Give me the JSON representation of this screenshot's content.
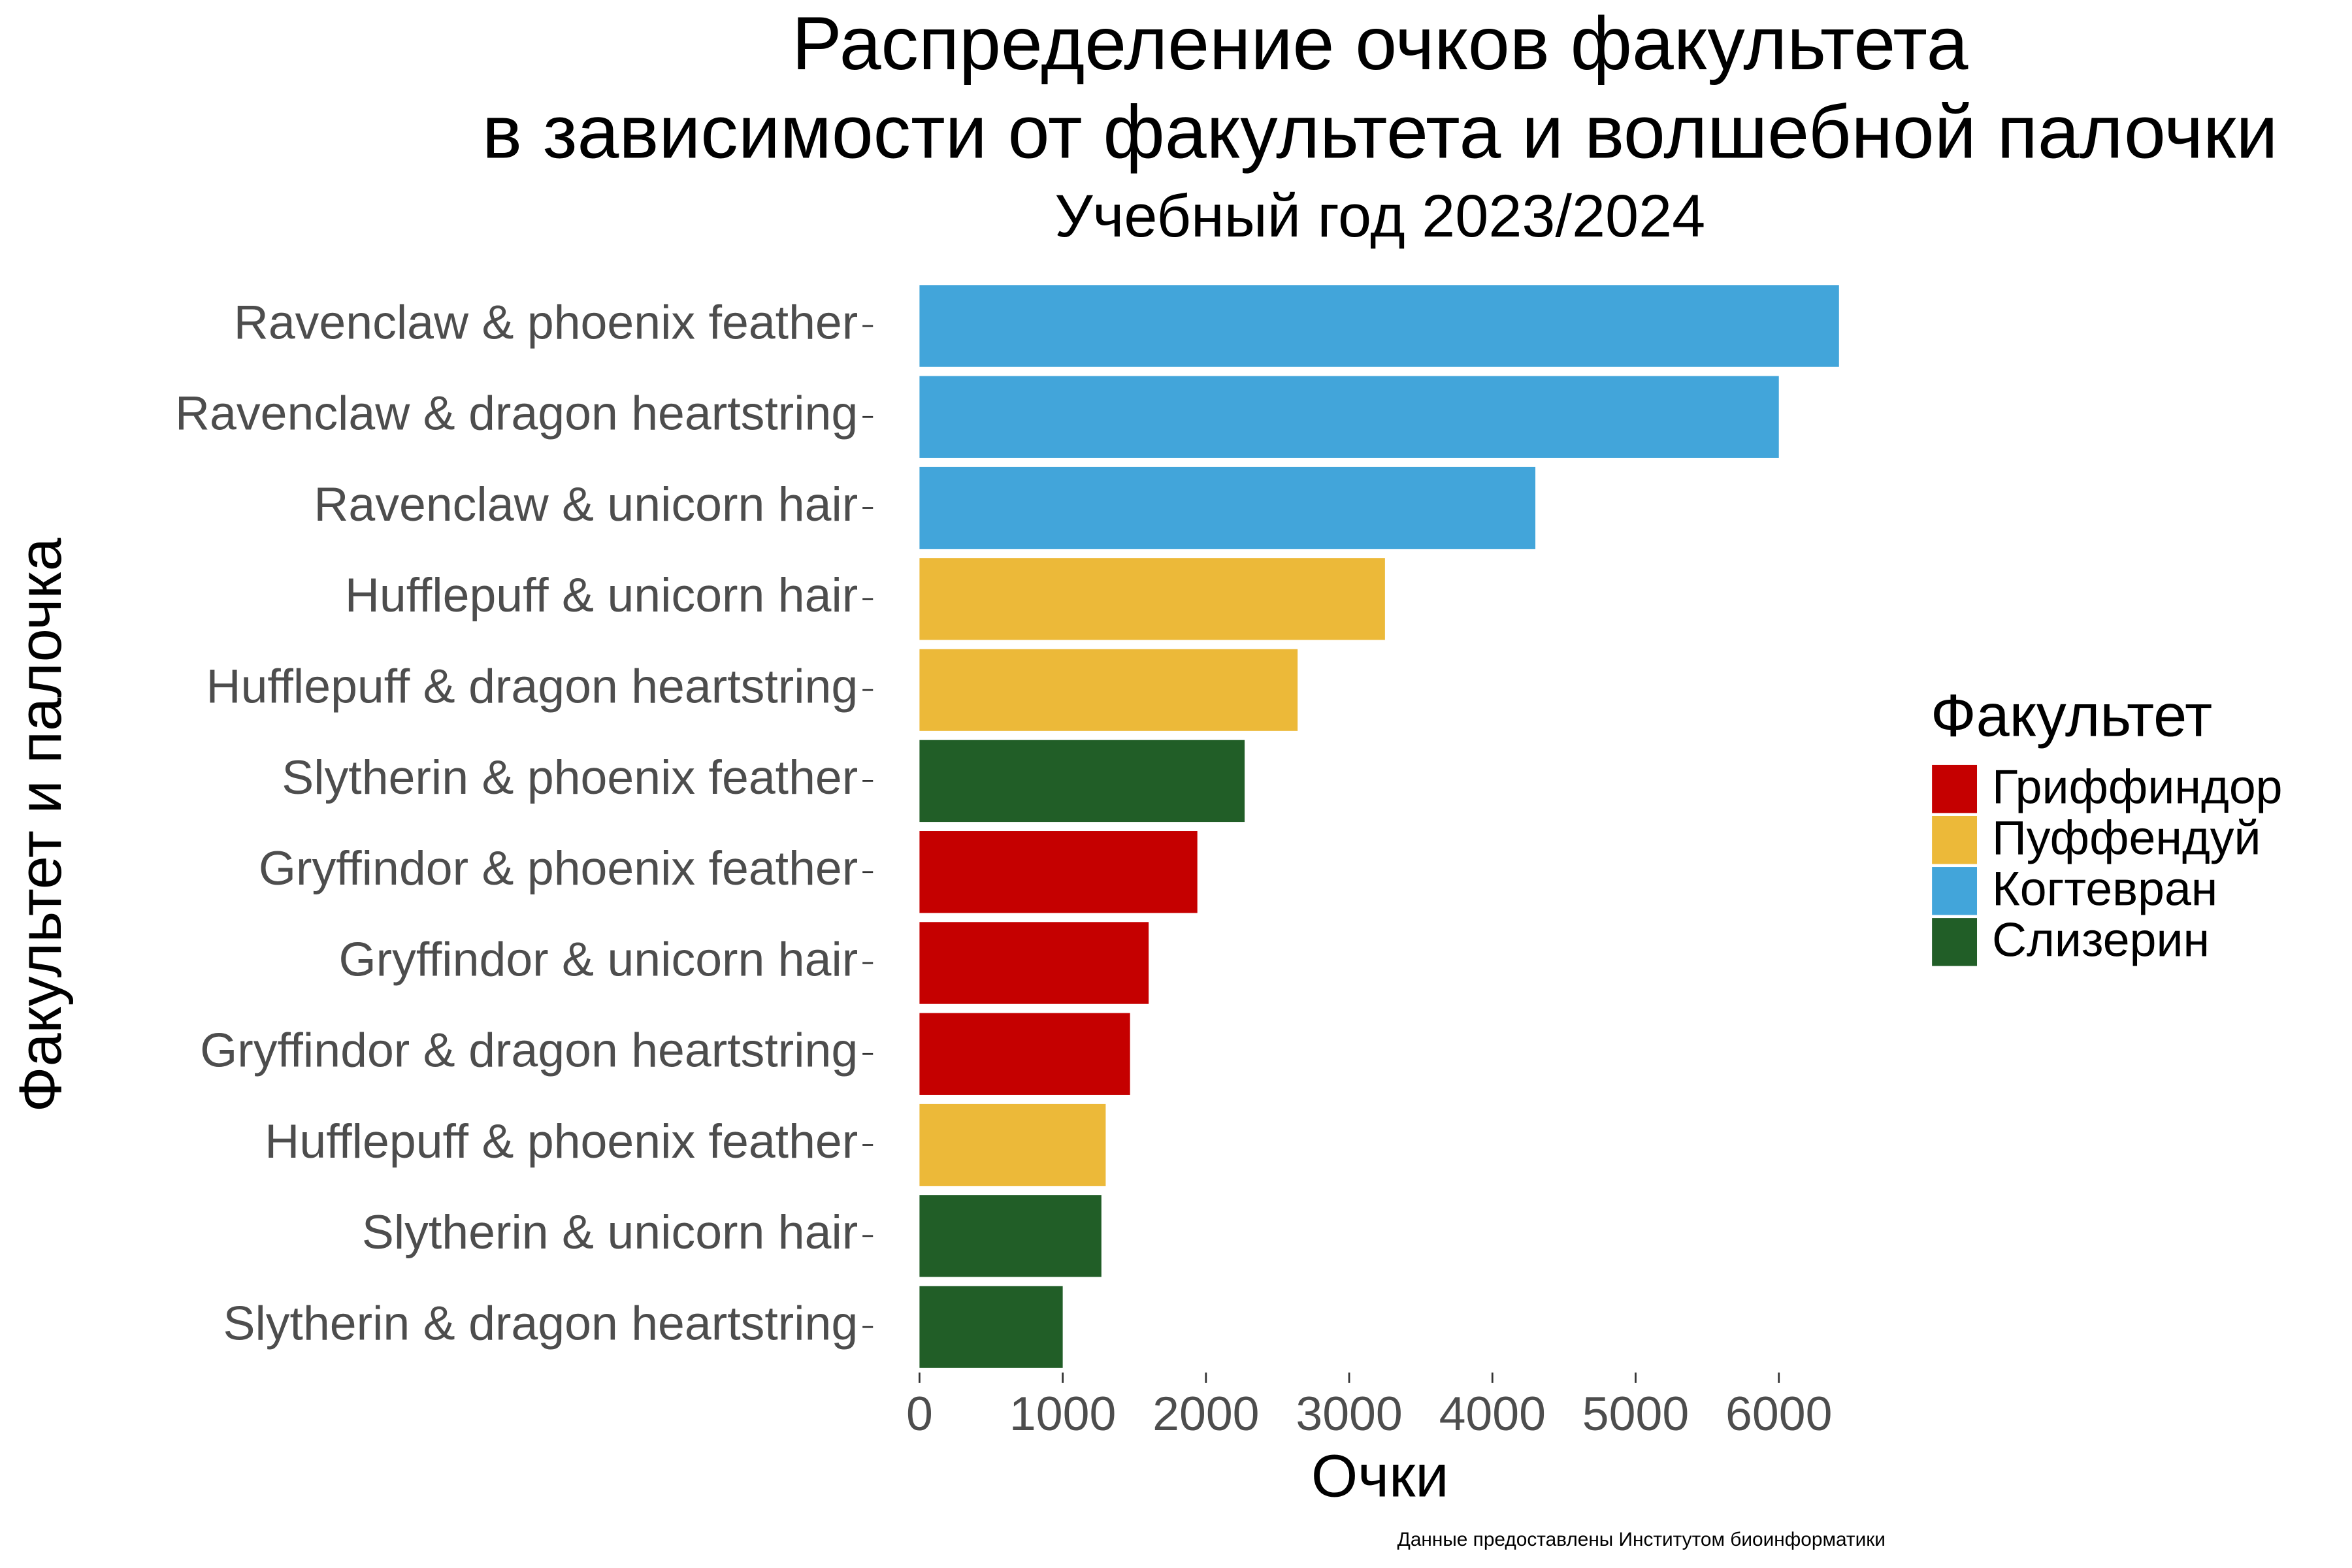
{
  "chart_data": {
    "type": "bar",
    "orientation": "horizontal",
    "title": [
      "Распределение очков факультета",
      "в зависимости от факультета и волшебной палочки"
    ],
    "subtitle": "Учебный год 2023/2024",
    "x_label": "Очки",
    "y_label": "Факультет и палочка",
    "caption": "Данные предоставлены Институтом биоинформатики",
    "categories": [
      "Ravenclaw & phoenix feather",
      "Ravenclaw & dragon heartstring",
      "Ravenclaw & unicorn hair",
      "Hufflepuff & unicorn hair",
      "Hufflepuff & dragon heartstring",
      "Slytherin & phoenix feather",
      "Gryffindor & phoenix feather",
      "Gryffindor & unicorn hair",
      "Gryffindor & dragon heartstring",
      "Hufflepuff & phoenix feather",
      "Slytherin & unicorn hair",
      "Slytherin & dragon heartstring"
    ],
    "values": [
      6420,
      6000,
      4300,
      3250,
      2640,
      2270,
      1940,
      1600,
      1470,
      1300,
      1270,
      1000
    ],
    "colors": [
      "#42a5da",
      "#42a5da",
      "#42a5da",
      "#ecb939",
      "#ecb939",
      "#215e27",
      "#c50000",
      "#c50000",
      "#c50000",
      "#ecb939",
      "#215e27",
      "#215e27"
    ],
    "xlim": [
      0,
      6420
    ],
    "xticks": [
      0,
      1000,
      2000,
      3000,
      4000,
      5000,
      6000
    ],
    "legend": {
      "title": "Факультет",
      "position": "right",
      "items": [
        {
          "name": "Гриффиндор",
          "color": "#c50000"
        },
        {
          "name": "Пуффендуй",
          "color": "#ecb939"
        },
        {
          "name": "Когтевран",
          "color": "#42a5da"
        },
        {
          "name": "Слизерин",
          "color": "#215e27"
        }
      ]
    }
  }
}
